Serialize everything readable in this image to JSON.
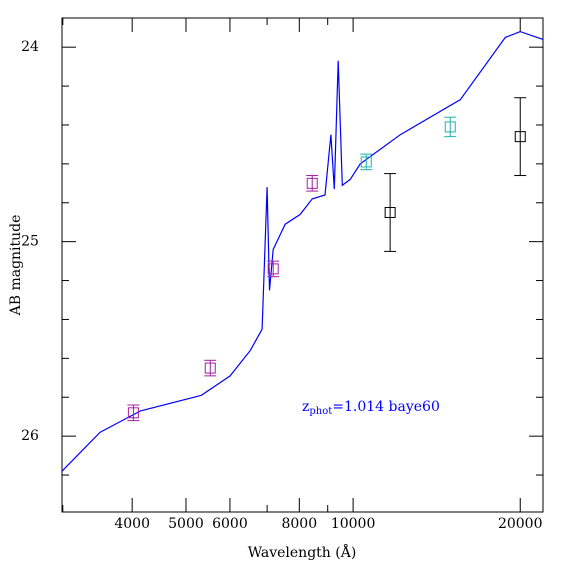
{
  "chart_data": {
    "type": "sed",
    "x_label": "Wavelength (Å)",
    "y_label": "AB magnitude",
    "annotation": {
      "base": "z",
      "sub": "phot",
      "text": "=1.014  baye60",
      "color": "#0000ff"
    },
    "log_x": true,
    "y_inverted": true,
    "xlim": [
      2990,
      21980
    ],
    "xticks": [
      4000,
      5000,
      6000,
      8000,
      10000,
      20000
    ],
    "xminor": [
      3000,
      7000,
      9000
    ],
    "ylim": [
      26.39,
      23.85
    ],
    "yticks": [
      24,
      25,
      26
    ],
    "yminor": [
      24.2,
      24.4,
      24.6,
      24.8,
      25.2,
      25.4,
      25.6,
      25.8,
      26.2
    ],
    "template": {
      "color": "#0000ff",
      "x": [
        2990,
        3500,
        4140,
        5330,
        6004,
        6525,
        6856,
        7000,
        7070,
        7180,
        7545,
        8030,
        8440,
        8900,
        9120,
        9250,
        9400,
        9560,
        9880,
        10300,
        12160,
        15600,
        18800,
        20000,
        21980
      ],
      "values": [
        26.18,
        25.98,
        25.87,
        25.79,
        25.69,
        25.56,
        25.45,
        24.72,
        25.25,
        25.04,
        24.91,
        24.86,
        24.78,
        24.76,
        24.45,
        24.73,
        24.07,
        24.71,
        24.68,
        24.6,
        24.45,
        24.27,
        23.95,
        23.92,
        23.96
      ]
    },
    "photometry": {
      "x": [
        4020,
        5530,
        7180,
        8440,
        10560,
        11660,
        14960,
        20000
      ],
      "values": [
        25.88,
        25.65,
        25.14,
        24.7,
        24.59,
        24.85,
        24.41,
        24.46
      ],
      "errors": [
        0.04,
        0.04,
        0.04,
        0.04,
        0.04,
        0.2,
        0.05,
        0.2
      ],
      "colors": [
        "#a020a0",
        "#a020a0",
        "#a020a0",
        "#a020a0",
        "#20b0b0",
        "#000000",
        "#20b0b0",
        "#000000"
      ]
    }
  }
}
